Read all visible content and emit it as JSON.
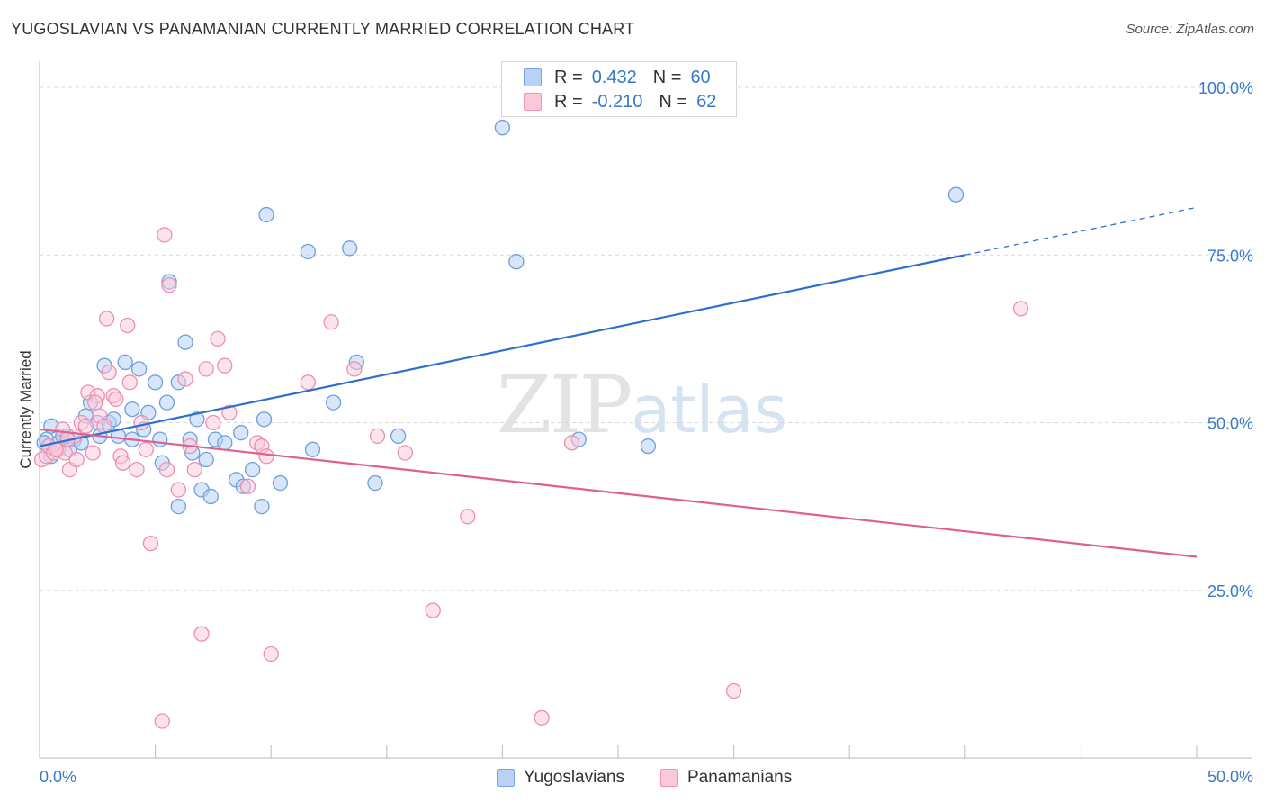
{
  "header": {
    "title": "YUGOSLAVIAN VS PANAMANIAN CURRENTLY MARRIED CORRELATION CHART",
    "source": "Source: ZipAtlas.com"
  },
  "legend": {
    "series1": {
      "r_label": "R =",
      "r_value": "0.432",
      "n_label": "N =",
      "n_value": "60"
    },
    "series2": {
      "r_label": "R =",
      "r_value": "-0.210",
      "n_label": "N =",
      "n_value": "62"
    }
  },
  "bottom_legend": {
    "series1": "Yugoslavians",
    "series2": "Panamanians"
  },
  "watermark": {
    "zip": "ZIP",
    "atlas": "atlas"
  },
  "colors": {
    "blue": "#6f9fdc",
    "blue_fill": "#b8d2f5",
    "blue_line": "#2d6fcf",
    "pink": "#ec8fae",
    "pink_fill": "#fbc9d9",
    "pink_line": "#e0608c"
  },
  "chart_data": {
    "type": "scatter",
    "title": "YUGOSLAVIAN VS PANAMANIAN CURRENTLY MARRIED CORRELATION CHART",
    "xlabel": "",
    "ylabel": "Currently Married",
    "xlim": [
      0,
      50
    ],
    "ylim": [
      0,
      100
    ],
    "x_tick_labels": [
      "0.0%",
      "50.0%"
    ],
    "y_ticks": [
      25,
      50,
      75,
      100
    ],
    "y_tick_labels": [
      "25.0%",
      "50.0%",
      "75.0%",
      "100.0%"
    ],
    "grid": true,
    "series": [
      {
        "name": "Yugoslavians",
        "r": 0.432,
        "n": 60,
        "trend": {
          "x0": 0,
          "y0": 46.5,
          "x1": 40,
          "y1": 75.0,
          "dash_to_x": 50,
          "dash_to_y": 82.1
        },
        "points": [
          [
            0.3,
            47.5
          ],
          [
            0.5,
            45.0
          ],
          [
            0.5,
            49.5
          ],
          [
            0.8,
            47.0
          ],
          [
            1.0,
            48.0
          ],
          [
            1.2,
            48.0
          ],
          [
            1.3,
            46.0
          ],
          [
            1.5,
            47.5
          ],
          [
            1.8,
            47.0
          ],
          [
            2.0,
            51.0
          ],
          [
            2.2,
            53.0
          ],
          [
            2.5,
            50.0
          ],
          [
            2.6,
            48.0
          ],
          [
            2.8,
            58.5
          ],
          [
            3.0,
            50.0
          ],
          [
            3.2,
            50.5
          ],
          [
            3.4,
            48.0
          ],
          [
            3.7,
            59.0
          ],
          [
            4.0,
            47.5
          ],
          [
            4.0,
            52.0
          ],
          [
            4.3,
            58.0
          ],
          [
            4.5,
            49.0
          ],
          [
            4.7,
            51.5
          ],
          [
            5.0,
            56.0
          ],
          [
            5.2,
            47.5
          ],
          [
            5.3,
            44.0
          ],
          [
            5.5,
            53.0
          ],
          [
            5.6,
            71.0
          ],
          [
            6.0,
            56.0
          ],
          [
            6.0,
            37.5
          ],
          [
            6.3,
            62.0
          ],
          [
            6.5,
            47.5
          ],
          [
            6.6,
            45.5
          ],
          [
            6.8,
            50.5
          ],
          [
            7.0,
            40.0
          ],
          [
            7.2,
            44.5
          ],
          [
            7.4,
            39.0
          ],
          [
            7.6,
            47.5
          ],
          [
            8.0,
            47.0
          ],
          [
            8.5,
            41.5
          ],
          [
            8.7,
            48.5
          ],
          [
            8.8,
            40.5
          ],
          [
            9.2,
            43.0
          ],
          [
            9.6,
            37.5
          ],
          [
            9.7,
            50.5
          ],
          [
            9.8,
            81.0
          ],
          [
            10.4,
            41.0
          ],
          [
            11.6,
            75.5
          ],
          [
            11.8,
            46.0
          ],
          [
            12.7,
            53.0
          ],
          [
            13.4,
            76.0
          ],
          [
            13.7,
            59.0
          ],
          [
            14.5,
            41.0
          ],
          [
            15.5,
            48.0
          ],
          [
            20.0,
            94.0
          ],
          [
            20.6,
            74.0
          ],
          [
            23.3,
            47.5
          ],
          [
            26.3,
            46.5
          ],
          [
            39.6,
            84.0
          ],
          [
            0.2,
            47.0
          ]
        ]
      },
      {
        "name": "Panamanians",
        "r": -0.21,
        "n": 62,
        "trend": {
          "x0": 0,
          "y0": 49.0,
          "x1": 50,
          "y1": 30.0
        },
        "points": [
          [
            0.1,
            44.5
          ],
          [
            0.3,
            45.0
          ],
          [
            0.4,
            46.5
          ],
          [
            0.6,
            45.5
          ],
          [
            0.8,
            46.0
          ],
          [
            1.0,
            49.0
          ],
          [
            1.1,
            45.5
          ],
          [
            1.3,
            43.0
          ],
          [
            1.5,
            48.0
          ],
          [
            1.6,
            44.5
          ],
          [
            1.8,
            50.0
          ],
          [
            2.0,
            49.5
          ],
          [
            2.1,
            54.5
          ],
          [
            2.3,
            45.5
          ],
          [
            2.5,
            54.0
          ],
          [
            2.6,
            51.0
          ],
          [
            2.8,
            49.5
          ],
          [
            2.9,
            65.5
          ],
          [
            3.0,
            57.5
          ],
          [
            3.2,
            54.0
          ],
          [
            3.3,
            53.5
          ],
          [
            3.5,
            45.0
          ],
          [
            3.6,
            44.0
          ],
          [
            3.8,
            64.5
          ],
          [
            3.9,
            56.0
          ],
          [
            4.2,
            43.0
          ],
          [
            4.4,
            50.0
          ],
          [
            4.6,
            46.0
          ],
          [
            4.8,
            32.0
          ],
          [
            5.3,
            5.5
          ],
          [
            5.4,
            78.0
          ],
          [
            5.5,
            43.0
          ],
          [
            5.6,
            70.5
          ],
          [
            6.0,
            40.0
          ],
          [
            6.3,
            56.5
          ],
          [
            6.5,
            46.5
          ],
          [
            6.7,
            43.0
          ],
          [
            7.0,
            18.5
          ],
          [
            7.2,
            58.0
          ],
          [
            7.5,
            50.0
          ],
          [
            7.7,
            62.5
          ],
          [
            8.0,
            58.5
          ],
          [
            8.2,
            51.5
          ],
          [
            9.0,
            40.5
          ],
          [
            9.4,
            47.0
          ],
          [
            9.6,
            46.5
          ],
          [
            9.8,
            45.0
          ],
          [
            10.0,
            15.5
          ],
          [
            11.6,
            56.0
          ],
          [
            12.6,
            65.0
          ],
          [
            13.6,
            58.0
          ],
          [
            14.6,
            48.0
          ],
          [
            15.8,
            45.5
          ],
          [
            17.0,
            22.0
          ],
          [
            18.5,
            36.0
          ],
          [
            21.7,
            6.0
          ],
          [
            23.0,
            47.0
          ],
          [
            30.0,
            10.0
          ],
          [
            42.4,
            67.0
          ],
          [
            0.7,
            46.0
          ],
          [
            1.2,
            47.5
          ],
          [
            2.4,
            53.0
          ]
        ]
      }
    ]
  }
}
